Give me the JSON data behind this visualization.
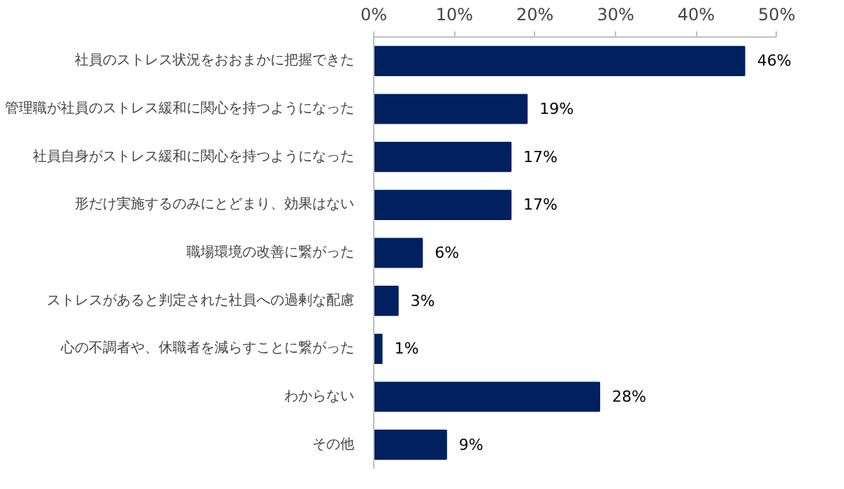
{
  "chart_data": {
    "type": "bar",
    "orientation": "horizontal",
    "categories": [
      "社員のストレス状況をおおまかに把握できた",
      "管理職が社員のストレス緩和に関心を持つようになった",
      "社員自身がストレス緩和に関心を持つようになった",
      "形だけ実施するのみにとどまり、効果はない",
      "職場環境の改善に繋がった",
      "ストレスがあると判定された社員への過剰な配慮",
      "心の不調者や、休職者を減らすことに繋がった",
      "わからない",
      "その他"
    ],
    "values": [
      46,
      19,
      17,
      17,
      6,
      3,
      1,
      28,
      9
    ],
    "value_labels": [
      "46%",
      "19%",
      "17%",
      "17%",
      "6%",
      "3%",
      "1%",
      "28%",
      "9%"
    ],
    "color": "#002060",
    "xlim": [
      0,
      50
    ],
    "xticks": [
      {
        "value": 0,
        "label": "0%"
      },
      {
        "value": 10,
        "label": "10%"
      },
      {
        "value": 20,
        "label": "20%"
      },
      {
        "value": 30,
        "label": "30%"
      },
      {
        "value": 40,
        "label": "40%"
      },
      {
        "value": 50,
        "label": "50%"
      }
    ],
    "grid": false
  }
}
